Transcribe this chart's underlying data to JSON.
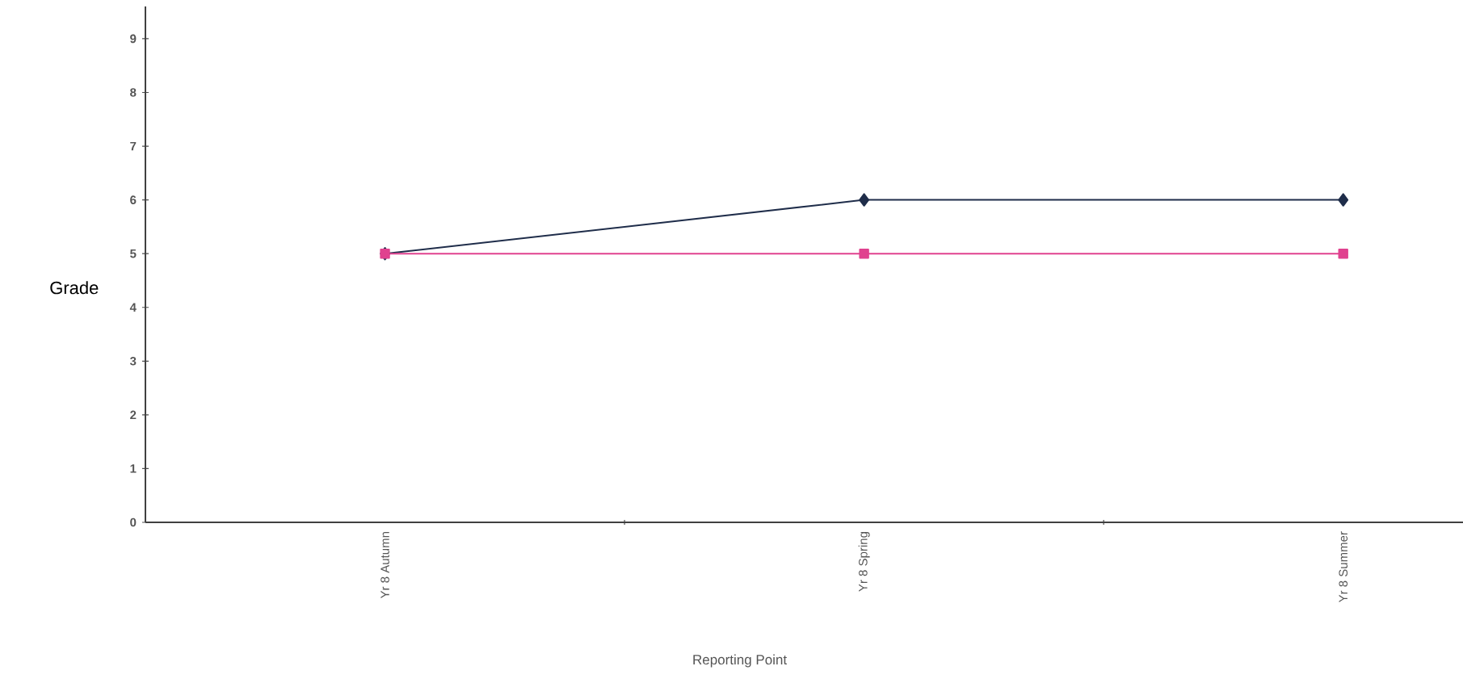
{
  "chart_data": {
    "type": "line",
    "xlabel": "Reporting Point",
    "ylabel": "Grade",
    "categories": [
      "Yr 8 Autumn",
      "Yr 8 Spring",
      "Yr 8 Summer"
    ],
    "series": [
      {
        "color": "#1f2d4a",
        "marker": "diamond",
        "values": [
          5,
          6,
          6
        ]
      },
      {
        "color": "#e0428f",
        "marker": "square",
        "values": [
          5,
          5,
          5
        ]
      }
    ],
    "ylim": [
      0,
      9.6
    ],
    "yticks": [
      0,
      1,
      2,
      3,
      4,
      5,
      6,
      7,
      8,
      9
    ]
  }
}
